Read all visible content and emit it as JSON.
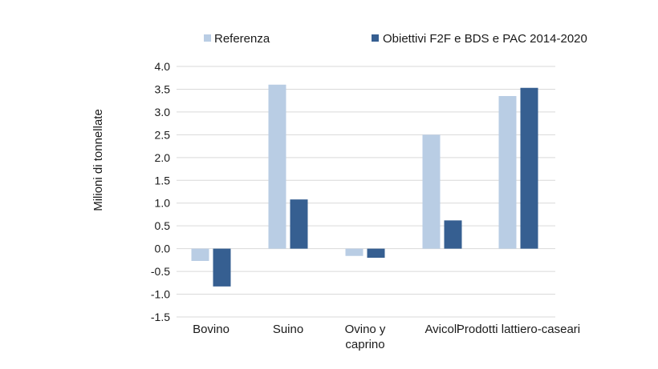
{
  "chart_data": {
    "type": "bar",
    "title": "",
    "xlabel": "",
    "ylabel": "Milioni di tonnellate",
    "ylim": [
      -1.5,
      4.0
    ],
    "yticks": [
      4.0,
      3.5,
      3.0,
      2.5,
      2.0,
      1.5,
      1.0,
      0.5,
      0.0,
      -0.5,
      -1.0,
      -1.5
    ],
    "ytick_labels": [
      "4.0",
      "3.5",
      "3.0",
      "2.5",
      "2.0",
      "1.5",
      "1.0",
      "0.5",
      "0.0",
      "-0.5",
      "-1.0",
      "-1.5"
    ],
    "grid": true,
    "legend_position": "top",
    "categories": [
      {
        "lines": [
          "Bovino"
        ]
      },
      {
        "lines": [
          "Suino"
        ]
      },
      {
        "lines": [
          "Ovino y",
          "caprino"
        ]
      },
      {
        "lines": [
          "Avicoli"
        ]
      },
      {
        "lines": [
          "Prodotti lattiero-caseari"
        ]
      }
    ],
    "series": [
      {
        "name": "Referenza",
        "color": "#b9cde4",
        "values": [
          -0.27,
          3.6,
          -0.16,
          2.5,
          3.35
        ]
      },
      {
        "name": "Obiettivi F2F e BDS e PAC 2014-2020",
        "color": "#365f91",
        "values": [
          -0.83,
          1.08,
          -0.2,
          0.62,
          3.53
        ]
      }
    ]
  }
}
